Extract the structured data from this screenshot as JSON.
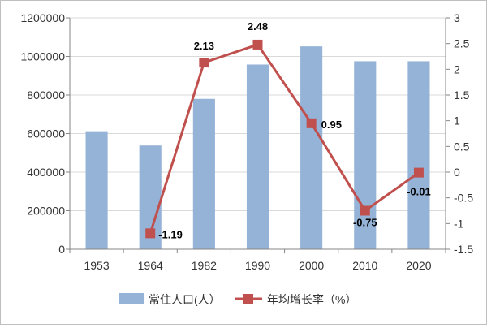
{
  "chart_data": {
    "type": "bar+line",
    "categories": [
      "1953",
      "1964",
      "1982",
      "1990",
      "2000",
      "2010",
      "2020"
    ],
    "series": [
      {
        "name": "常住人口(人）",
        "type": "bar",
        "axis": "left",
        "values": [
          612000,
          538000,
          780000,
          958000,
          1052000,
          975000,
          975000
        ],
        "color": "#95b3d7"
      },
      {
        "name": "年均增长率（%）",
        "type": "line",
        "axis": "right",
        "values": [
          null,
          -1.19,
          2.13,
          2.48,
          0.95,
          -0.75,
          -0.01
        ],
        "labels": [
          "",
          "-1.19",
          "2.13",
          "2.48",
          "0.95",
          "-0.75",
          "-0.01"
        ],
        "color": "#c0504d"
      }
    ],
    "y_left": {
      "min": 0,
      "max": 1200000,
      "ticks": [
        "0",
        "200000",
        "400000",
        "600000",
        "800000",
        "1000000",
        "1200000"
      ]
    },
    "y_right": {
      "min": -1.5,
      "max": 3,
      "ticks": [
        "-1.5",
        "-1",
        "-0.5",
        "0",
        "0.5",
        "1",
        "1.5",
        "2",
        "2.5",
        "3"
      ]
    },
    "grid": true,
    "legend_position": "bottom"
  }
}
